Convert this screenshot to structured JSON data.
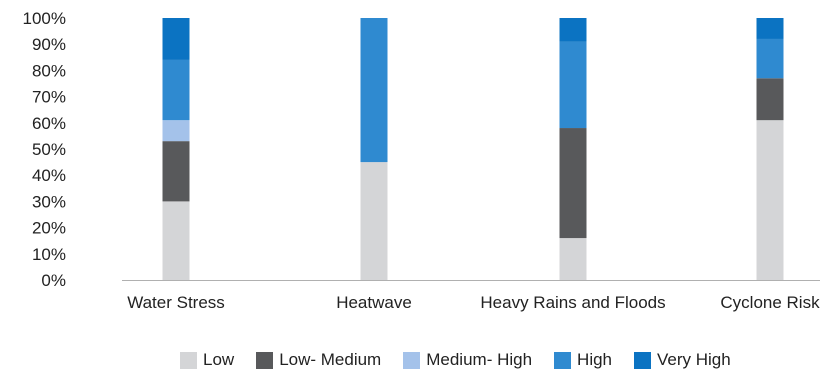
{
  "chart_data": {
    "type": "bar",
    "stacked": true,
    "title": "",
    "xlabel": "",
    "ylabel": "",
    "ylim": [
      0,
      100
    ],
    "yticks": [
      0,
      10,
      20,
      30,
      40,
      50,
      60,
      70,
      80,
      90,
      100
    ],
    "ytick_suffix": "%",
    "grid": false,
    "legend_position": "bottom",
    "categories": [
      "Water Stress",
      "Heatwave",
      "Heavy Rains and Floods",
      "Cyclone Risk"
    ],
    "series": [
      {
        "name": "Low",
        "color": "#d4d5d7",
        "values": [
          30,
          45,
          16,
          61
        ]
      },
      {
        "name": "Low- Medium",
        "color": "#58595b",
        "values": [
          23,
          0,
          42,
          16
        ]
      },
      {
        "name": "Medium- High",
        "color": "#a4c2ea",
        "values": [
          8,
          0,
          0,
          0
        ]
      },
      {
        "name": "High",
        "color": "#2f8ad0",
        "values": [
          23,
          55,
          33,
          15
        ]
      },
      {
        "name": "Very High",
        "color": "#0b73c2",
        "values": [
          16,
          0,
          9,
          8
        ]
      }
    ]
  }
}
